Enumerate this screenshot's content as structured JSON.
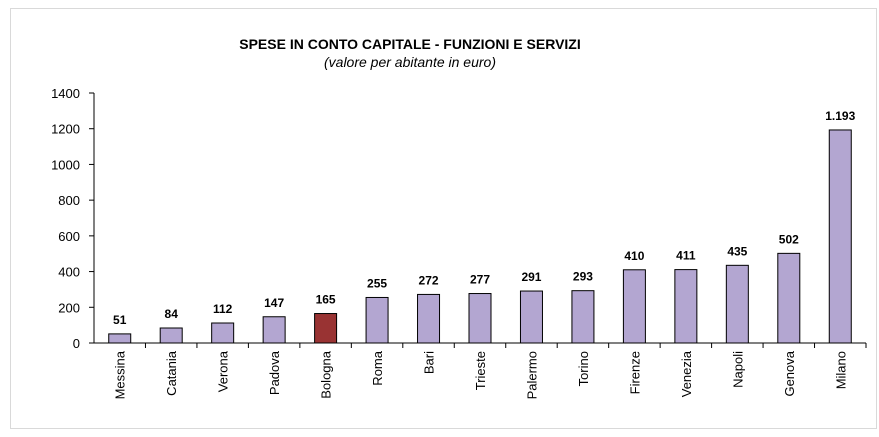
{
  "chart_data": {
    "type": "bar",
    "title": "SPESE IN CONTO CAPITALE - FUNZIONI E SERVIZI",
    "subtitle": "(valore per abitante in euro)",
    "categories": [
      "Messina",
      "Catania",
      "Verona",
      "Padova",
      "Bologna",
      "Roma",
      "Bari",
      "Trieste",
      "Palermo",
      "Torino",
      "Firenze",
      "Venezia",
      "Napoli",
      "Genova",
      "Milano"
    ],
    "values": [
      51,
      84,
      112,
      147,
      165,
      255,
      272,
      277,
      291,
      293,
      410,
      411,
      435,
      502,
      1193
    ],
    "value_labels": [
      "51",
      "84",
      "112",
      "147",
      "165",
      "255",
      "272",
      "277",
      "291",
      "293",
      "410",
      "411",
      "435",
      "502",
      "1.193"
    ],
    "colors": [
      "#b3a6d1",
      "#b3a6d1",
      "#b3a6d1",
      "#b3a6d1",
      "#993333",
      "#b3a6d1",
      "#b3a6d1",
      "#b3a6d1",
      "#b3a6d1",
      "#b3a6d1",
      "#b3a6d1",
      "#b3a6d1",
      "#b3a6d1",
      "#b3a6d1",
      "#b3a6d1"
    ],
    "ylim": [
      0,
      1400
    ],
    "yticks": [
      0,
      200,
      400,
      600,
      800,
      1000,
      1200,
      1400
    ],
    "grid": false
  }
}
